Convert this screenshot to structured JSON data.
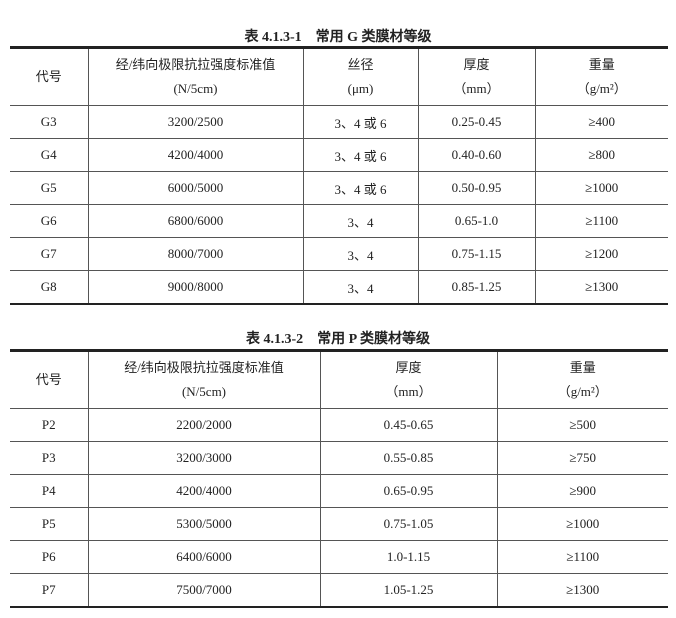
{
  "table1": {
    "title": "表 4.1.3-1　常用 G 类膜材等级",
    "headers": [
      {
        "line1": "代号",
        "line2": ""
      },
      {
        "line1": "经/纬向极限抗拉强度标准值",
        "line2": "(N/5cm)"
      },
      {
        "line1": "丝径",
        "line2": "(μm)"
      },
      {
        "line1": "厚度",
        "line2": "（mm）"
      },
      {
        "line1": "重量",
        "line2": "（g/m²）"
      }
    ],
    "rows": [
      [
        "G3",
        "3200/2500",
        "3、4 或 6",
        "0.25-0.45",
        "≥400"
      ],
      [
        "G4",
        "4200/4000",
        "3、4 或 6",
        "0.40-0.60",
        "≥800"
      ],
      [
        "G5",
        "6000/5000",
        "3、4 或 6",
        "0.50-0.95",
        "≥1000"
      ],
      [
        "G6",
        "6800/6000",
        "3、4",
        "0.65-1.0",
        "≥1100"
      ],
      [
        "G7",
        "8000/7000",
        "3、4",
        "0.75-1.15",
        "≥1200"
      ],
      [
        "G8",
        "9000/8000",
        "3、4",
        "0.85-1.25",
        "≥1300"
      ]
    ]
  },
  "table2": {
    "title": "表 4.1.3-2　常用 P 类膜材等级",
    "headers": [
      {
        "line1": "代号",
        "line2": ""
      },
      {
        "line1": "经/纬向极限抗拉强度标准值",
        "line2": "(N/5cm)"
      },
      {
        "line1": "厚度",
        "line2": "（mm）"
      },
      {
        "line1": "重量",
        "line2": "（g/m²）"
      }
    ],
    "rows": [
      [
        "P2",
        "2200/2000",
        "0.45-0.65",
        "≥500"
      ],
      [
        "P3",
        "3200/3000",
        "0.55-0.85",
        "≥750"
      ],
      [
        "P4",
        "4200/4000",
        "0.65-0.95",
        "≥900"
      ],
      [
        "P5",
        "5300/5000",
        "0.75-1.05",
        "≥1000"
      ],
      [
        "P6",
        "6400/6000",
        "1.0-1.15",
        "≥1100"
      ],
      [
        "P7",
        "7500/7000",
        "1.05-1.25",
        "≥1300"
      ]
    ]
  }
}
